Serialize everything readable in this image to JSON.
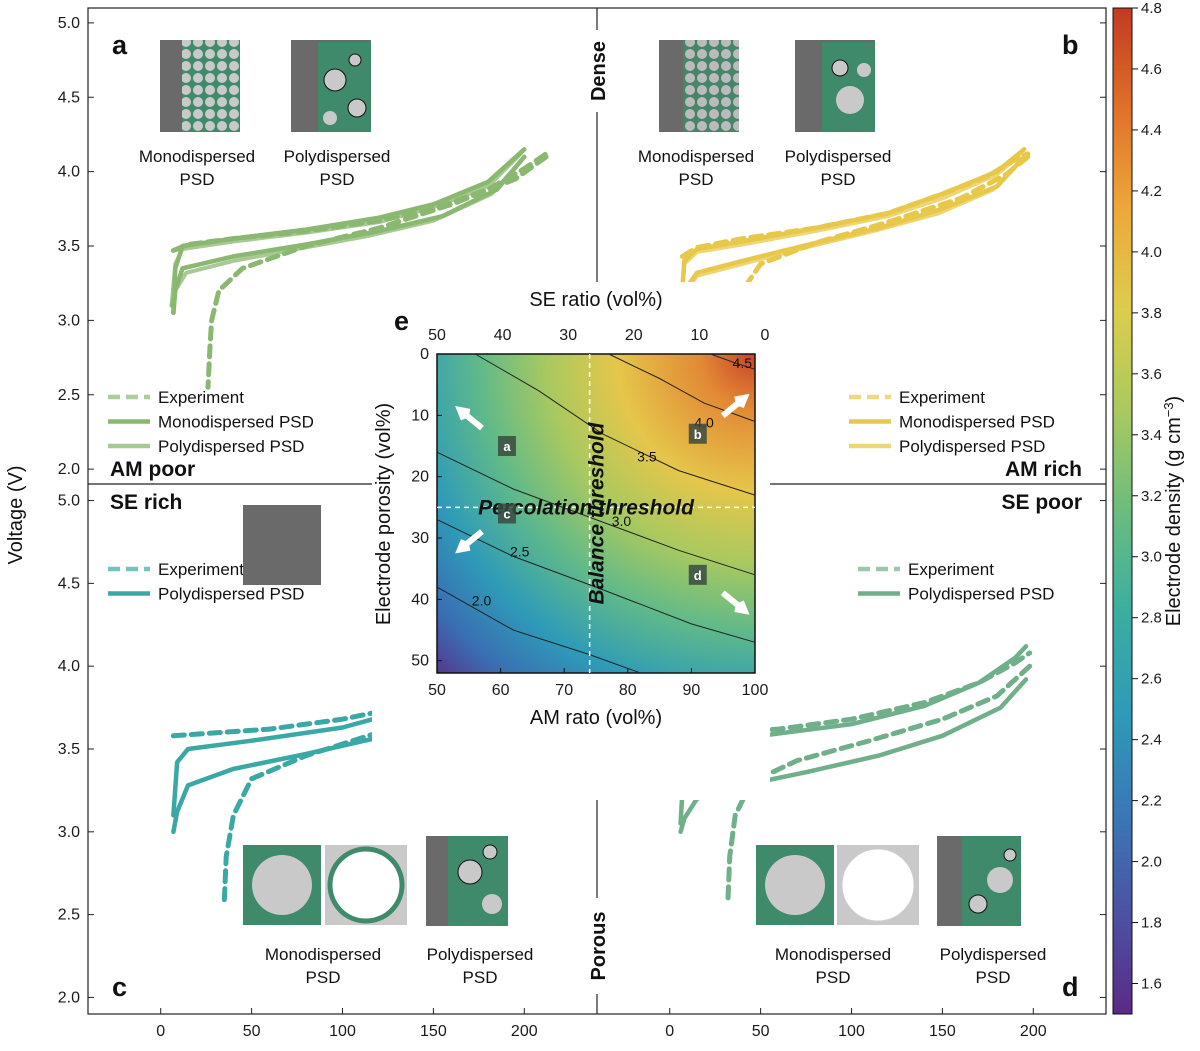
{
  "chart_data": [
    {
      "panel": "a",
      "type": "line",
      "letter": "a",
      "corner_label": "AM poor",
      "ylabel": "Voltage (V)",
      "ylim": [
        1.9,
        5.1
      ],
      "xlim": [
        -40,
        240
      ],
      "y_ticks": [
        "2.0",
        "2.5",
        "3.0",
        "3.5",
        "4.0",
        "4.5",
        "5.0"
      ],
      "legend": [
        "Experiment",
        "Monodispersed PSD",
        "Polydispersed PSD"
      ],
      "inset_captions": [
        "Monodispersed",
        "PSD",
        "Polydispersed",
        "PSD"
      ],
      "color": "#8ab870",
      "series": [
        {
          "name": "Experiment",
          "style": "dashed",
          "charge": {
            "x": [
              7,
              15,
              40,
              80,
              120,
              150,
              180,
              200,
              212
            ],
            "y": [
              3.47,
              3.51,
              3.55,
              3.6,
              3.67,
              3.75,
              3.88,
              4.02,
              4.12
            ]
          },
          "discharge": {
            "x": [
              212,
              195,
              160,
              120,
              80,
              45,
              32,
              28,
              27,
              26
            ],
            "y": [
              4.1,
              3.95,
              3.78,
              3.62,
              3.5,
              3.35,
              3.2,
              3.0,
              2.8,
              2.55
            ]
          }
        },
        {
          "name": "Monodispersed PSD",
          "style": "solid",
          "charge": {
            "x": [
              7,
              8,
              12,
              40,
              80,
              120,
              150,
              180,
              200
            ],
            "y": [
              3.05,
              3.35,
              3.5,
              3.55,
              3.61,
              3.69,
              3.78,
              3.93,
              4.15
            ]
          },
          "discharge": {
            "x": [
              200,
              185,
              155,
              120,
              80,
              40,
              12,
              8,
              7
            ],
            "y": [
              4.1,
              3.88,
              3.7,
              3.6,
              3.51,
              3.43,
              3.35,
              3.2,
              3.05
            ]
          }
        },
        {
          "name": "Polydispersed PSD",
          "style": "solid",
          "charge": {
            "x": [
              6,
              8,
              12,
              40,
              80,
              120,
              150,
              180,
              198
            ],
            "y": [
              3.1,
              3.38,
              3.48,
              3.53,
              3.59,
              3.66,
              3.76,
              3.9,
              4.12
            ]
          },
          "discharge": {
            "x": [
              198,
              182,
              150,
              115,
              75,
              40,
              14,
              8,
              6
            ],
            "y": [
              4.07,
              3.85,
              3.67,
              3.57,
              3.48,
              3.4,
              3.32,
              3.2,
              3.1
            ]
          }
        }
      ]
    },
    {
      "panel": "b",
      "type": "line",
      "letter": "b",
      "corner_label": "AM rich",
      "side_label": "Dense",
      "ylim": [
        1.9,
        5.1
      ],
      "xlim": [
        -40,
        240
      ],
      "legend": [
        "Experiment",
        "Monodispersed PSD",
        "Polydispersed PSD"
      ],
      "inset_captions": [
        "Monodispersed",
        "PSD",
        "Polydispersed",
        "PSD"
      ],
      "color": "#e8c84a",
      "series": [
        {
          "name": "Experiment",
          "style": "dashed",
          "charge": {
            "x": [
              7,
              15,
              40,
              80,
              120,
              150,
              175,
              190,
              197
            ],
            "y": [
              3.43,
              3.49,
              3.55,
              3.62,
              3.72,
              3.85,
              3.97,
              4.08,
              4.12
            ]
          },
          "discharge": {
            "x": [
              197,
              185,
              160,
              120,
              80,
              50,
              40,
              36,
              35
            ],
            "y": [
              4.1,
              3.98,
              3.82,
              3.66,
              3.52,
              3.38,
              3.2,
              3.0,
              2.75
            ]
          }
        },
        {
          "name": "Monodispersed PSD",
          "style": "solid",
          "charge": {
            "x": [
              6,
              8,
              15,
              40,
              80,
              120,
              150,
              180,
              195
            ],
            "y": [
              3.05,
              3.4,
              3.48,
              3.53,
              3.62,
              3.72,
              3.85,
              4.0,
              4.15
            ]
          },
          "discharge": {
            "x": [
              195,
              180,
              150,
              115,
              80,
              40,
              15,
              8,
              6
            ],
            "y": [
              4.1,
              3.9,
              3.75,
              3.62,
              3.52,
              3.4,
              3.32,
              3.2,
              3.05
            ]
          }
        },
        {
          "name": "Polydispersed PSD",
          "style": "solid",
          "charge": {
            "x": [
              6,
              8,
              15,
              40,
              80,
              120,
              150,
              180,
              193
            ],
            "y": [
              3.0,
              3.38,
              3.46,
              3.51,
              3.6,
              3.7,
              3.82,
              3.98,
              4.12
            ]
          },
          "discharge": {
            "x": [
              193,
              178,
              148,
              112,
              78,
              40,
              15,
              8,
              6
            ],
            "y": [
              4.07,
              3.88,
              3.72,
              3.6,
              3.5,
              3.38,
              3.3,
              3.18,
              3.0
            ]
          }
        }
      ]
    },
    {
      "panel": "c",
      "type": "line",
      "letter": "c",
      "corner_label": "SE rich",
      "ylim": [
        1.9,
        5.1
      ],
      "xlim": [
        -40,
        240
      ],
      "y_ticks": [
        "2.0",
        "2.5",
        "3.0",
        "3.5",
        "4.0",
        "4.5",
        "5.0"
      ],
      "x_ticks": [
        "0",
        "50",
        "100",
        "150",
        "200"
      ],
      "legend": [
        "Experiment",
        "Polydispersed PSD"
      ],
      "inset_captions": [
        "Monodispersed",
        "PSD",
        "Polydispersed",
        "PSD"
      ],
      "color": "#3aa8a4",
      "series": [
        {
          "name": "Experiment",
          "style": "dashed",
          "charge": {
            "x": [
              7,
              20,
              60,
              100,
              140,
              170,
              195,
              210
            ],
            "y": [
              3.58,
              3.59,
              3.62,
              3.68,
              3.77,
              3.88,
              4.02,
              4.12
            ]
          },
          "discharge": {
            "x": [
              210,
              190,
              160,
              120,
              80,
              50,
              40,
              36,
              35
            ],
            "y": [
              4.05,
              3.88,
              3.74,
              3.6,
              3.46,
              3.32,
              3.1,
              2.85,
              2.58
            ]
          }
        },
        {
          "name": "Polydispersed PSD",
          "style": "solid",
          "charge": {
            "x": [
              7,
              9,
              15,
              50,
              100,
              140,
              170,
              195,
              200
            ],
            "y": [
              3.1,
              3.42,
              3.5,
              3.55,
              3.63,
              3.75,
              3.9,
              4.08,
              4.12
            ]
          },
          "discharge": {
            "x": [
              200,
              185,
              155,
              120,
              80,
              40,
              15,
              9,
              7
            ],
            "y": [
              4.05,
              3.85,
              3.68,
              3.57,
              3.47,
              3.38,
              3.28,
              3.12,
              3.0
            ]
          }
        }
      ]
    },
    {
      "panel": "d",
      "type": "line",
      "letter": "d",
      "corner_label": "SE poor",
      "side_label": "Porous",
      "ylim": [
        1.9,
        5.1
      ],
      "xlim": [
        -40,
        240
      ],
      "x_ticks": [
        "0",
        "50",
        "100",
        "150",
        "200"
      ],
      "legend": [
        "Experiment",
        "Polydispersed PSD"
      ],
      "inset_captions": [
        "Monodispersed",
        "PSD",
        "Polydispersed",
        "PSD"
      ],
      "color": "#6fb08a",
      "series": [
        {
          "name": "Experiment",
          "style": "dashed",
          "charge": {
            "x": [
              7,
              20,
              60,
              100,
              140,
              170,
              190,
              198
            ],
            "y": [
              3.58,
              3.59,
              3.62,
              3.68,
              3.78,
              3.9,
              4.02,
              4.08
            ]
          },
          "discharge": {
            "x": [
              198,
              180,
              150,
              110,
              70,
              45,
              36,
              33,
              32
            ],
            "y": [
              4.0,
              3.82,
              3.68,
              3.55,
              3.43,
              3.3,
              3.1,
              2.85,
              2.58
            ]
          }
        },
        {
          "name": "Polydispersed PSD",
          "style": "solid",
          "charge": {
            "x": [
              6,
              8,
              15,
              50,
              100,
              140,
              170,
              190,
              196
            ],
            "y": [
              3.05,
              3.45,
              3.53,
              3.58,
              3.65,
              3.76,
              3.9,
              4.05,
              4.12
            ]
          },
          "discharge": {
            "x": [
              196,
              182,
              150,
              115,
              75,
              40,
              15,
              8,
              6
            ],
            "y": [
              3.92,
              3.75,
              3.58,
              3.46,
              3.36,
              3.28,
              3.2,
              3.08,
              3.0
            ]
          }
        }
      ]
    },
    {
      "panel": "e",
      "type": "heatmap",
      "letter": "e",
      "xlabel": "AM rato (vol%)",
      "ylabel": "Electrode porosity (vol%)",
      "top_xlabel": "SE ratio (vol%)",
      "xlim": [
        50,
        100
      ],
      "ylim": [
        0,
        52
      ],
      "x_ticks": [
        "50",
        "60",
        "70",
        "80",
        "90",
        "100"
      ],
      "top_x_ticks": [
        "50",
        "40",
        "30",
        "20",
        "10",
        "0"
      ],
      "y_ticks": [
        "0",
        "10",
        "20",
        "30",
        "40",
        "50"
      ],
      "contour_levels": [
        2.0,
        2.5,
        3.0,
        3.5,
        4.0,
        4.5
      ],
      "contour_labels": [
        "2.0",
        "2.5",
        "3.0",
        "3.5",
        "4.0",
        "4.5"
      ],
      "thresholds": {
        "balance": "Balance threshold",
        "percolation": "Percolation threshold",
        "balance_am_ratio": 74,
        "percolation_porosity": 25
      },
      "region_markers": [
        {
          "label": "a",
          "am_ratio": 61,
          "porosity": 15
        },
        {
          "label": "b",
          "am_ratio": 91,
          "porosity": 13
        },
        {
          "label": "c",
          "am_ratio": 61,
          "porosity": 26
        },
        {
          "label": "d",
          "am_ratio": 91,
          "porosity": 36
        }
      ]
    }
  ],
  "x_axis_ticks": [
    "0",
    "50",
    "100",
    "150",
    "200"
  ],
  "y_axis_ticks": [
    "2.0",
    "2.5",
    "3.0",
    "3.5",
    "4.0",
    "4.5",
    "5.0"
  ],
  "colorbar": {
    "label": "Electrode density (g cm",
    "label_sup": "−3",
    "label_close": ")",
    "range": [
      1.5,
      4.8
    ],
    "ticks": [
      "1.6",
      "1.8",
      "2.0",
      "2.2",
      "2.4",
      "2.6",
      "2.8",
      "3.0",
      "3.2",
      "3.4",
      "3.6",
      "3.8",
      "4.0",
      "4.2",
      "4.4",
      "4.6",
      "4.8"
    ],
    "colors": [
      "#5b2a86",
      "#4c52a3",
      "#3a78b6",
      "#2e9bb8",
      "#3aae9f",
      "#6cbc7f",
      "#a9c95f",
      "#dccd4c",
      "#eda83a",
      "#e0702a",
      "#c23a22"
    ]
  }
}
